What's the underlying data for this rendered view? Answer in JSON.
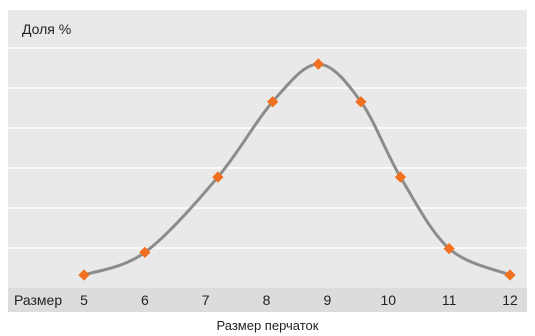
{
  "chart_data": {
    "type": "line",
    "ylabel": "Доля %",
    "x_prefix": "Размер",
    "xlabel": "Размер перчаток",
    "x_ticks": [
      5,
      6,
      7,
      8,
      9,
      10,
      11,
      12
    ],
    "xlim": [
      5,
      12
    ],
    "ylim": [
      0,
      6
    ],
    "grid": true,
    "smooth": true,
    "series": [
      {
        "x": [
          5,
          6,
          7.2,
          8.1,
          8.85,
          9.55,
          10.2,
          11,
          12
        ],
        "y": [
          0.0,
          0.6,
          2.6,
          4.6,
          5.6,
          4.6,
          2.6,
          0.7,
          0.0
        ],
        "line_color": "#8c8c8c",
        "marker_color": "#f07020"
      }
    ]
  }
}
